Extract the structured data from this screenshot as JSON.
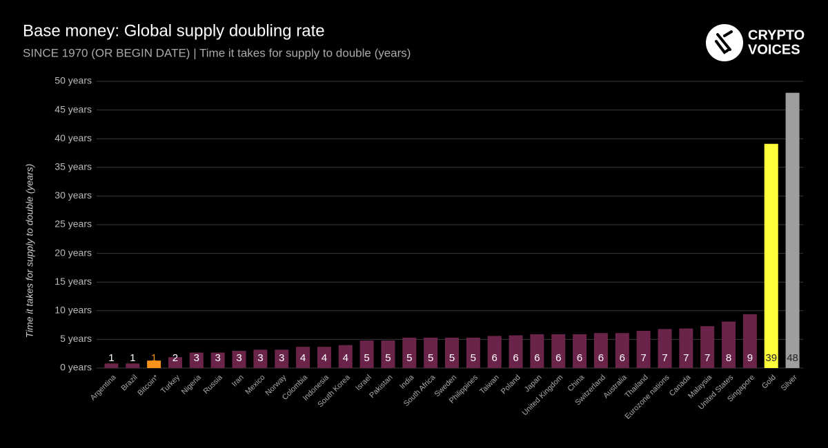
{
  "logo": [
    "CRYPTO",
    "VOICES"
  ],
  "chart_data": {
    "type": "bar",
    "title": "Base money: Global supply doubling rate",
    "subtitle": "SINCE 1970 (OR BEGIN DATE) | Time it takes for supply to double (years)",
    "y_label": "Time it takes for supply to double (years)",
    "categories": [
      "Argentina",
      "Brazil",
      "Bitcoin*",
      "Turkey",
      "Nigeria",
      "Russia",
      "Iran",
      "Mexico",
      "Norway",
      "Colombia",
      "Indonesia",
      "South Korea",
      "Israel",
      "Pakistan",
      "India",
      "South Africa",
      "Sweden",
      "Philippines",
      "Taiwan",
      "Poland",
      "Japan",
      "United Kingdom",
      "China",
      "Switzerland",
      "Australia",
      "Thailand",
      "Eurozone nations",
      "Canada",
      "Malaysia",
      "United States",
      "Singapore",
      "Gold",
      "Silver"
    ],
    "values": [
      0.8,
      0.8,
      1.3,
      1.9,
      2.7,
      2.7,
      3.0,
      3.2,
      3.2,
      3.7,
      3.7,
      4.0,
      4.8,
      4.8,
      5.3,
      5.3,
      5.3,
      5.3,
      5.6,
      5.7,
      5.9,
      5.9,
      5.9,
      6.1,
      6.1,
      6.5,
      6.8,
      6.9,
      7.3,
      8.1,
      9.4,
      39.1,
      48
    ],
    "value_labels": [
      "1",
      "1",
      "1",
      "2",
      "3",
      "3",
      "3",
      "3",
      "3",
      "4",
      "4",
      "4",
      "5",
      "5",
      "5",
      "5",
      "5",
      "5",
      "6",
      "6",
      "6",
      "6",
      "6",
      "6",
      "6",
      "7",
      "7",
      "7",
      "7",
      "8",
      "9",
      "39",
      "48"
    ],
    "colors": [
      "#6b2449",
      "#6b2449",
      "#f7931a",
      "#6b2449",
      "#6b2449",
      "#6b2449",
      "#6b2449",
      "#6b2449",
      "#6b2449",
      "#6b2449",
      "#6b2449",
      "#6b2449",
      "#6b2449",
      "#6b2449",
      "#6b2449",
      "#6b2449",
      "#6b2449",
      "#6b2449",
      "#6b2449",
      "#6b2449",
      "#6b2449",
      "#6b2449",
      "#6b2449",
      "#6b2449",
      "#6b2449",
      "#6b2449",
      "#6b2449",
      "#6b2449",
      "#6b2449",
      "#6b2449",
      "#6b2449",
      "#ffff3c",
      "#9e9e9e"
    ],
    "value_label_colors": [
      "#ffffff",
      "#ffffff",
      "#f7931a",
      "#ffffff",
      "#ffffff",
      "#ffffff",
      "#ffffff",
      "#ffffff",
      "#ffffff",
      "#ffffff",
      "#ffffff",
      "#ffffff",
      "#ffffff",
      "#ffffff",
      "#ffffff",
      "#ffffff",
      "#ffffff",
      "#ffffff",
      "#ffffff",
      "#ffffff",
      "#ffffff",
      "#ffffff",
      "#ffffff",
      "#ffffff",
      "#ffffff",
      "#ffffff",
      "#ffffff",
      "#ffffff",
      "#ffffff",
      "#ffffff",
      "#ffffff",
      "#222222",
      "#222222"
    ],
    "ylim": [
      0,
      50
    ],
    "yticks": [
      {
        "value": 0,
        "label": "0 years"
      },
      {
        "value": 5,
        "label": "5 years"
      },
      {
        "value": 10,
        "label": "10 years"
      },
      {
        "value": 15,
        "label": "15 years"
      },
      {
        "value": 20,
        "label": "20 years"
      },
      {
        "value": 25,
        "label": "25 years"
      },
      {
        "value": 30,
        "label": "30 years"
      },
      {
        "value": 35,
        "label": "35 years"
      },
      {
        "value": 40,
        "label": "40 years"
      },
      {
        "value": 45,
        "label": "45 years"
      },
      {
        "value": 50,
        "label": "50 years"
      }
    ],
    "grid": true
  }
}
